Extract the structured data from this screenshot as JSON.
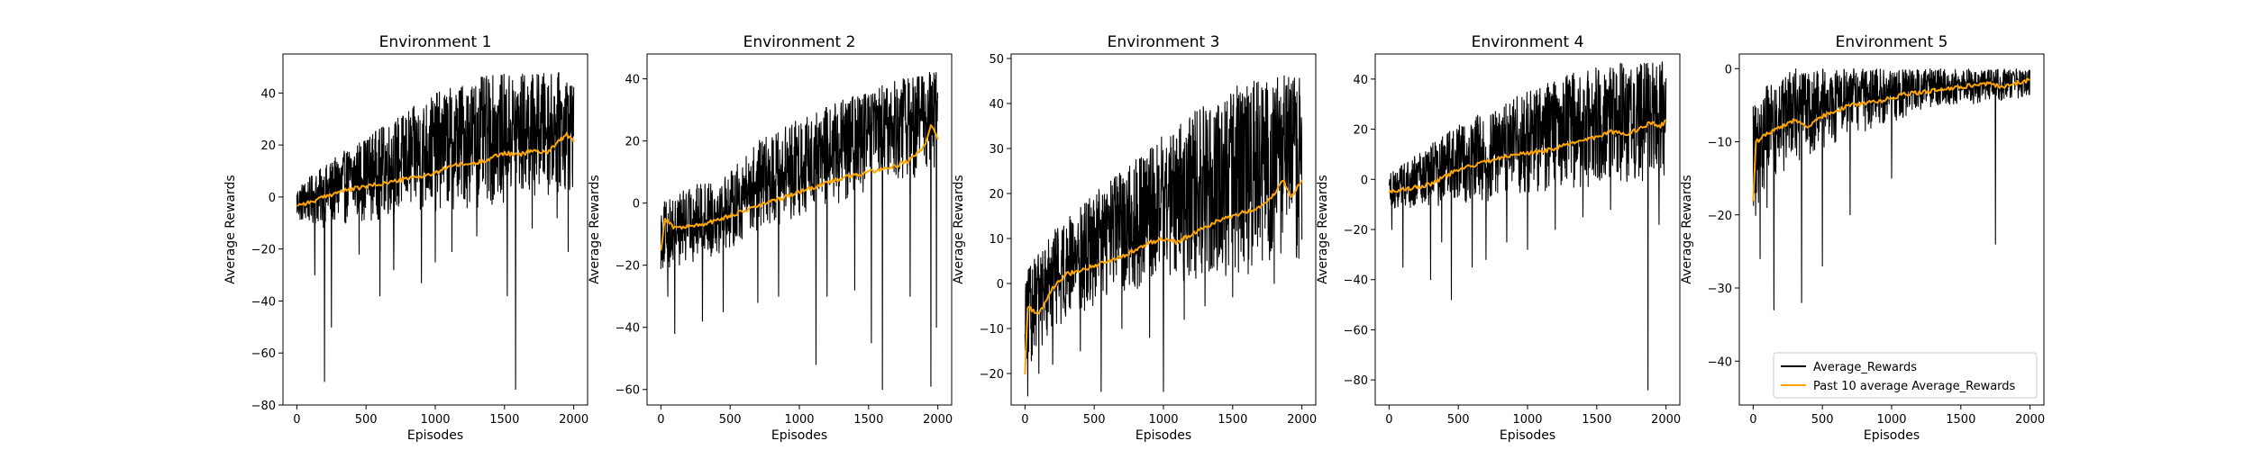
{
  "chart_data": [
    {
      "type": "line",
      "title": "Environment 1",
      "xlabel": "Episodes",
      "ylabel": "Average Rewards",
      "xlim": [
        -100,
        2100
      ],
      "ylim": [
        -80,
        55
      ],
      "xticks": [
        0,
        500,
        1000,
        1500,
        2000
      ],
      "yticks": [
        -80,
        -60,
        -40,
        -20,
        0,
        20,
        40
      ],
      "series": [
        {
          "name": "Average_Rewards",
          "color": "#000000",
          "band": [
            [
              0,
              -10,
              4
            ],
            [
              200,
              -12,
              12
            ],
            [
              400,
              -10,
              20
            ],
            [
              700,
              -8,
              30
            ],
            [
              1000,
              -6,
              40
            ],
            [
              1300,
              -4,
              46
            ],
            [
              1600,
              -2,
              48
            ],
            [
              2000,
              2,
              48
            ]
          ],
          "spikes": [
            [
              130,
              -30
            ],
            [
              200,
              -71
            ],
            [
              250,
              -50
            ],
            [
              450,
              -22
            ],
            [
              600,
              -38
            ],
            [
              700,
              -28
            ],
            [
              900,
              -33
            ],
            [
              1000,
              -25
            ],
            [
              1120,
              -21
            ],
            [
              1300,
              -15
            ],
            [
              1520,
              -38
            ],
            [
              1580,
              -74
            ],
            [
              1700,
              -12
            ],
            [
              1880,
              -8
            ],
            [
              1960,
              -21
            ]
          ]
        },
        {
          "name": "Past 10 average Average_Rewards",
          "color": "#FFA500",
          "values": [
            [
              0,
              -3
            ],
            [
              100,
              -2
            ],
            [
              200,
              0
            ],
            [
              300,
              2
            ],
            [
              500,
              4
            ],
            [
              700,
              6
            ],
            [
              900,
              8
            ],
            [
              1000,
              9
            ],
            [
              1100,
              12
            ],
            [
              1300,
              13
            ],
            [
              1500,
              17
            ],
            [
              1600,
              16
            ],
            [
              1700,
              18
            ],
            [
              1800,
              17
            ],
            [
              1900,
              22
            ],
            [
              1950,
              24
            ],
            [
              2000,
              21
            ]
          ]
        }
      ]
    },
    {
      "type": "line",
      "title": "Environment 2",
      "xlabel": "Episodes",
      "ylabel": "Average Rewards",
      "xlim": [
        -100,
        2100
      ],
      "ylim": [
        -65,
        48
      ],
      "xticks": [
        0,
        500,
        1000,
        1500,
        2000
      ],
      "yticks": [
        -60,
        -40,
        -20,
        0,
        20,
        40
      ],
      "series": [
        {
          "name": "Average_Rewards",
          "color": "#000000",
          "band": [
            [
              0,
              -22,
              0
            ],
            [
              200,
              -20,
              5
            ],
            [
              500,
              -15,
              10
            ],
            [
              700,
              -10,
              20
            ],
            [
              1000,
              -5,
              27
            ],
            [
              1300,
              0,
              33
            ],
            [
              1600,
              5,
              38
            ],
            [
              2000,
              10,
              44
            ]
          ],
          "spikes": [
            [
              50,
              -30
            ],
            [
              100,
              -42
            ],
            [
              300,
              -38
            ],
            [
              450,
              -35
            ],
            [
              700,
              -32
            ],
            [
              850,
              -30
            ],
            [
              1120,
              -52
            ],
            [
              1200,
              -30
            ],
            [
              1400,
              -28
            ],
            [
              1520,
              -45
            ],
            [
              1600,
              -60
            ],
            [
              1800,
              -30
            ],
            [
              1950,
              -59
            ],
            [
              1990,
              -40
            ]
          ]
        },
        {
          "name": "Past 10 average Average_Rewards",
          "color": "#FFA500",
          "values": [
            [
              0,
              -15
            ],
            [
              30,
              -5
            ],
            [
              100,
              -8
            ],
            [
              300,
              -7
            ],
            [
              500,
              -4
            ],
            [
              700,
              -1
            ],
            [
              900,
              2
            ],
            [
              1100,
              5
            ],
            [
              1300,
              8
            ],
            [
              1500,
              10
            ],
            [
              1700,
              12
            ],
            [
              1800,
              14
            ],
            [
              1900,
              18
            ],
            [
              1950,
              25
            ],
            [
              2000,
              21
            ]
          ]
        }
      ]
    },
    {
      "type": "line",
      "title": "Environment 3",
      "xlabel": "Episodes",
      "ylabel": "Average Rewards",
      "xlim": [
        -100,
        2100
      ],
      "ylim": [
        -27,
        51
      ],
      "xticks": [
        0,
        500,
        1000,
        1500,
        2000
      ],
      "yticks": [
        -20,
        -10,
        0,
        10,
        20,
        30,
        40,
        50
      ],
      "series": [
        {
          "name": "Average_Rewards",
          "color": "#000000",
          "band": [
            [
              0,
              -20,
              2
            ],
            [
              200,
              -10,
              12
            ],
            [
              500,
              -5,
              20
            ],
            [
              800,
              -2,
              28
            ],
            [
              1000,
              0,
              33
            ],
            [
              1300,
              1,
              40
            ],
            [
              1600,
              2,
              45
            ],
            [
              2000,
              3,
              47
            ]
          ],
          "spikes": [
            [
              20,
              -25
            ],
            [
              100,
              -20
            ],
            [
              200,
              -18
            ],
            [
              400,
              -15
            ],
            [
              550,
              -24
            ],
            [
              700,
              -10
            ],
            [
              900,
              -12
            ],
            [
              1000,
              -24
            ],
            [
              1150,
              -8
            ],
            [
              1300,
              -5
            ],
            [
              1500,
              -3
            ],
            [
              1800,
              0
            ]
          ]
        },
        {
          "name": "Past 10 average Average_Rewards",
          "color": "#FFA500",
          "values": [
            [
              0,
              -20
            ],
            [
              20,
              -5
            ],
            [
              100,
              -7
            ],
            [
              200,
              -1
            ],
            [
              300,
              2
            ],
            [
              500,
              4
            ],
            [
              700,
              6
            ],
            [
              900,
              9
            ],
            [
              1000,
              10
            ],
            [
              1100,
              9
            ],
            [
              1200,
              11
            ],
            [
              1400,
              14
            ],
            [
              1500,
              15
            ],
            [
              1700,
              17
            ],
            [
              1800,
              20
            ],
            [
              1870,
              23
            ],
            [
              1920,
              19
            ],
            [
              2000,
              23
            ]
          ]
        }
      ]
    },
    {
      "type": "line",
      "title": "Environment 4",
      "xlabel": "Episodes",
      "ylabel": "Average Rewards",
      "xlim": [
        -100,
        2100
      ],
      "ylim": [
        -90,
        50
      ],
      "xticks": [
        0,
        500,
        1000,
        1500,
        2000
      ],
      "yticks": [
        -80,
        -60,
        -40,
        -20,
        0,
        20,
        40
      ],
      "series": [
        {
          "name": "Average_Rewards",
          "color": "#000000",
          "band": [
            [
              0,
              -12,
              2
            ],
            [
              200,
              -12,
              10
            ],
            [
              500,
              -10,
              22
            ],
            [
              800,
              -8,
              30
            ],
            [
              1000,
              -6,
              35
            ],
            [
              1300,
              -4,
              42
            ],
            [
              1600,
              -2,
              46
            ],
            [
              2000,
              0,
              48
            ]
          ],
          "spikes": [
            [
              20,
              -20
            ],
            [
              100,
              -35
            ],
            [
              300,
              -40
            ],
            [
              380,
              -25
            ],
            [
              450,
              -48
            ],
            [
              600,
              -35
            ],
            [
              700,
              -32
            ],
            [
              850,
              -25
            ],
            [
              1000,
              -28
            ],
            [
              1200,
              -20
            ],
            [
              1400,
              -15
            ],
            [
              1600,
              -12
            ],
            [
              1870,
              -84
            ],
            [
              1950,
              -18
            ]
          ]
        },
        {
          "name": "Past 10 average Average_Rewards",
          "color": "#FFA500",
          "values": [
            [
              0,
              -5
            ],
            [
              100,
              -4
            ],
            [
              300,
              -2
            ],
            [
              500,
              4
            ],
            [
              700,
              7
            ],
            [
              900,
              10
            ],
            [
              1100,
              11
            ],
            [
              1300,
              14
            ],
            [
              1500,
              17
            ],
            [
              1600,
              19
            ],
            [
              1700,
              18
            ],
            [
              1800,
              20
            ],
            [
              1900,
              23
            ],
            [
              1950,
              21
            ],
            [
              2000,
              23
            ]
          ]
        }
      ]
    },
    {
      "type": "line",
      "title": "Environment 5",
      "xlabel": "Episodes",
      "ylabel": "Average Rewards",
      "xlim": [
        -100,
        2100
      ],
      "ylim": [
        -46,
        2
      ],
      "xticks": [
        0,
        500,
        1000,
        1500,
        2000
      ],
      "yticks": [
        -40,
        -30,
        -20,
        -10,
        0
      ],
      "series": [
        {
          "name": "Average_Rewards",
          "color": "#000000",
          "band": [
            [
              0,
              -22,
              -4
            ],
            [
              100,
              -16,
              -2
            ],
            [
              300,
              -13,
              0
            ],
            [
              600,
              -10,
              0
            ],
            [
              900,
              -8,
              0
            ],
            [
              1200,
              -6,
              0
            ],
            [
              1500,
              -5,
              0
            ],
            [
              2000,
              -4,
              0
            ]
          ],
          "spikes": [
            [
              50,
              -26
            ],
            [
              100,
              -19
            ],
            [
              150,
              -33
            ],
            [
              350,
              -32
            ],
            [
              500,
              -27
            ],
            [
              700,
              -20
            ],
            [
              1000,
              -15
            ],
            [
              1750,
              -24
            ]
          ]
        },
        {
          "name": "Past 10 average Average_Rewards",
          "color": "#FFA500",
          "values": [
            [
              0,
              -18
            ],
            [
              20,
              -10
            ],
            [
              100,
              -9
            ],
            [
              200,
              -8
            ],
            [
              300,
              -7
            ],
            [
              400,
              -8
            ],
            [
              500,
              -6.5
            ],
            [
              700,
              -5
            ],
            [
              900,
              -4.5
            ],
            [
              1100,
              -3.5
            ],
            [
              1300,
              -3
            ],
            [
              1500,
              -2.5
            ],
            [
              1700,
              -2
            ],
            [
              1800,
              -2.5
            ],
            [
              1900,
              -2
            ],
            [
              2000,
              -1.5
            ]
          ]
        }
      ]
    }
  ],
  "legend": {
    "placement": "lower-right",
    "panel": 4,
    "entries": [
      "Average_Rewards",
      "Past 10 average Average_Rewards"
    ]
  }
}
